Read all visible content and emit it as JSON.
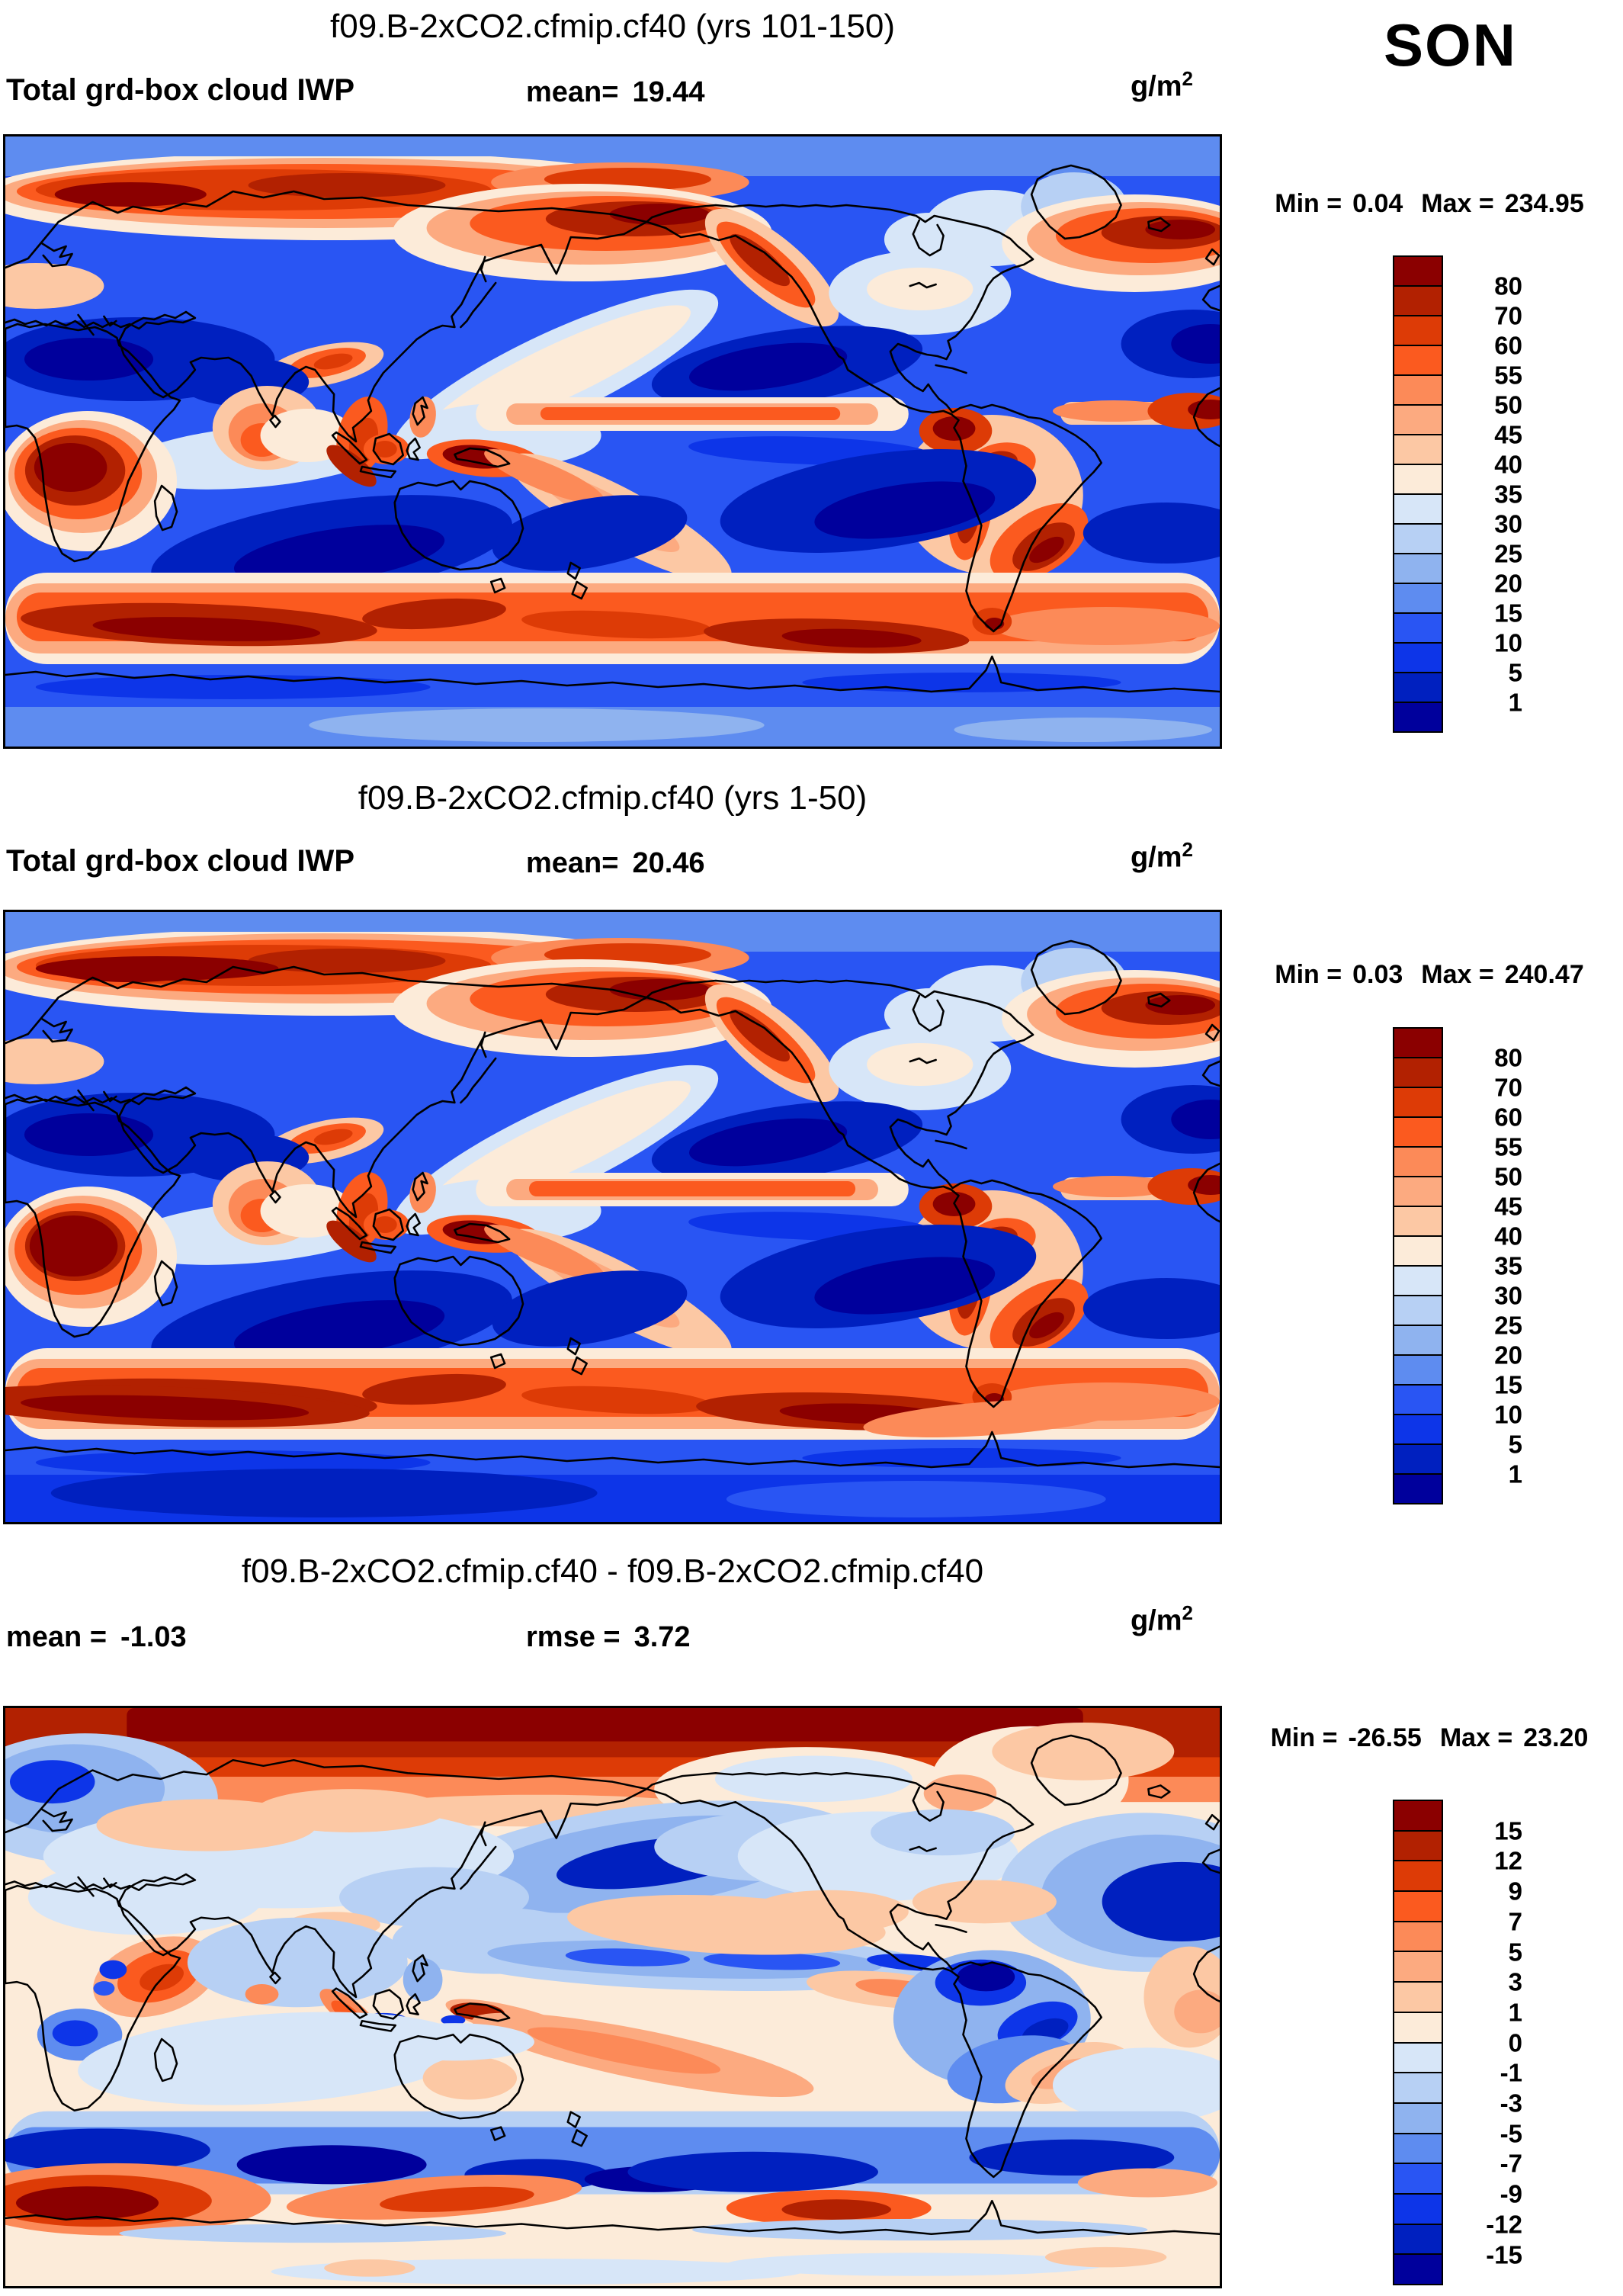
{
  "page": {
    "background": "#ffffff",
    "season_label": "SON"
  },
  "palette_low_to_high": [
    "#00009c",
    "#0020bf",
    "#0d35e8",
    "#2955f3",
    "#5e8cf0",
    "#8fb3ef",
    "#b7d0f4",
    "#d7e6f8",
    "#fcebd9",
    "#fcc8a4",
    "#fcaa80",
    "#fc8a58",
    "#fb5a1f",
    "#dd3b06",
    "#b22101",
    "#8b0000"
  ],
  "panels": [
    {
      "title": "f09.B-2xCO2.cfmip.cf40 (yrs 101-150)",
      "variable_label": "Total grd-box cloud IWP",
      "stats": [
        {
          "label": "mean=",
          "value": "19.44"
        }
      ],
      "units_base": "g/m",
      "units_exponent": "2",
      "minmax": {
        "min_label": "Min =",
        "min_value": "0.04",
        "max_label": "Max =",
        "max_value": "234.95"
      },
      "colorbar": {
        "tick_labels_top_to_bottom": [
          "80",
          "70",
          "60",
          "55",
          "50",
          "45",
          "40",
          "35",
          "30",
          "25",
          "20",
          "15",
          "10",
          "5",
          "1"
        ]
      }
    },
    {
      "title": "f09.B-2xCO2.cfmip.cf40 (yrs 1-50)",
      "variable_label": "Total grd-box cloud IWP",
      "stats": [
        {
          "label": "mean=",
          "value": "20.46"
        }
      ],
      "units_base": "g/m",
      "units_exponent": "2",
      "minmax": {
        "min_label": "Min =",
        "min_value": "0.03",
        "max_label": "Max =",
        "max_value": "240.47"
      },
      "colorbar": {
        "tick_labels_top_to_bottom": [
          "80",
          "70",
          "60",
          "55",
          "50",
          "45",
          "40",
          "35",
          "30",
          "25",
          "20",
          "15",
          "10",
          "5",
          "1"
        ]
      }
    },
    {
      "title": "f09.B-2xCO2.cfmip.cf40 - f09.B-2xCO2.cfmip.cf40",
      "variable_label": "",
      "stats": [
        {
          "label": "mean =",
          "value": "-1.03"
        },
        {
          "label": "rmse =",
          "value": "3.72"
        }
      ],
      "units_base": "g/m",
      "units_exponent": "2",
      "minmax": {
        "min_label": "Min =",
        "min_value": "-26.55",
        "max_label": "Max =",
        "max_value": "23.20"
      },
      "colorbar": {
        "tick_labels_top_to_bottom": [
          "15",
          "12",
          "9",
          "7",
          "5",
          "3",
          "1",
          "0",
          "-1",
          "-3",
          "-5",
          "-7",
          "-9",
          "-12",
          "-15"
        ]
      }
    }
  ],
  "chart_data": [
    {
      "type": "filled_contour_map",
      "title": "f09.B-2xCO2.cfmip.cf40 (yrs 101-150)",
      "variable": "Total grd-box cloud IWP",
      "season": "SON",
      "units": "g/m^2",
      "projection": "equirectangular",
      "lon_range": [
        0,
        360
      ],
      "lat_range": [
        -90,
        90
      ],
      "contour_levels": [
        1,
        5,
        10,
        15,
        20,
        25,
        30,
        35,
        40,
        45,
        50,
        55,
        60,
        70,
        80
      ],
      "stats": {
        "mean": 19.44,
        "min": 0.04,
        "max": 234.95
      },
      "legend_position": "right",
      "high_regions": [
        "Arctic ~70-80N band",
        "North Pacific storm track / Kamchatka / Gulf of Alaska",
        "North Atlantic storm track",
        "central Africa (Congo)",
        "India & Maritime Continent (New Guinea darkest)",
        "Pacific ITCZ",
        "Colombia-Andes-SE Brazil",
        "Southern Ocean storm track 45-60S"
      ],
      "low_regions": [
        "subtropical oceans (dark blue)",
        "Sahara / Arabia",
        "south Indian & southeast Pacific subtropics"
      ]
    },
    {
      "type": "filled_contour_map",
      "title": "f09.B-2xCO2.cfmip.cf40 (yrs 1-50)",
      "variable": "Total grd-box cloud IWP",
      "season": "SON",
      "units": "g/m^2",
      "projection": "equirectangular",
      "lon_range": [
        0,
        360
      ],
      "lat_range": [
        -90,
        90
      ],
      "contour_levels": [
        1,
        5,
        10,
        15,
        20,
        25,
        30,
        35,
        40,
        45,
        50,
        55,
        60,
        70,
        80
      ],
      "stats": {
        "mean": 20.46,
        "min": 0.03,
        "max": 240.47
      },
      "legend_position": "right",
      "high_regions": [
        "same pattern as yrs 101-150, slightly stronger: Arctic band, storm tracks, tropical Africa, Maritime Continent, Andes, Southern Ocean band"
      ],
      "low_regions": [
        "subtropical oceans",
        "Sahara / Arabia"
      ]
    },
    {
      "type": "filled_contour_difference_map",
      "title": "f09.B-2xCO2.cfmip.cf40 - f09.B-2xCO2.cfmip.cf40",
      "variable": "Total grd-box cloud IWP difference",
      "season": "SON",
      "units": "g/m^2",
      "projection": "equirectangular",
      "lon_range": [
        0,
        360
      ],
      "lat_range": [
        -90,
        90
      ],
      "contour_levels": [
        -15,
        -12,
        -9,
        -7,
        -5,
        -3,
        -1,
        0,
        1,
        3,
        5,
        7,
        9,
        12,
        15
      ],
      "stats": {
        "mean": -1.03,
        "rmse": 3.72,
        "min": -26.55,
        "max": 23.2
      },
      "legend_position": "right",
      "high_regions": [
        "strong positive (>15) band across the Arctic",
        "positive blobs in Southern Ocean ~55-65S",
        "Horn of Africa",
        "New Guinea"
      ],
      "low_regions": [
        "negative band over Southern Ocean 40-58S",
        "North Pacific mid-latitudes",
        "Scandinavia/Barents",
        "NW Amazon and Brazil",
        "equatorial Pacific streak",
        "North Atlantic SE of Greenland"
      ]
    }
  ]
}
